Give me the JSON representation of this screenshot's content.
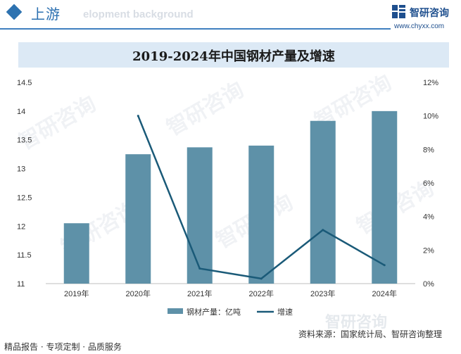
{
  "header": {
    "title": "上游",
    "bg_text": "elopment background"
  },
  "logo": {
    "name": "智研咨询",
    "url": "www.chyxx.com",
    "color": "#1e4f8e"
  },
  "watermark": "智研咨询",
  "footer": {
    "left": "精品报告 · 专项定制 · 品质服务",
    "source": "资料来源：国家统计局、智研咨询整理"
  },
  "chart_data": {
    "type": "bar+line",
    "title": "2019-2024年中国钢材产量及增速",
    "categories": [
      "2019年",
      "2020年",
      "2021年",
      "2022年",
      "2023年",
      "2024年"
    ],
    "series": [
      {
        "name": "钢材产量：亿吨",
        "type": "bar",
        "axis": "left",
        "color": "#5e91a8",
        "values": [
          12.05,
          13.25,
          13.37,
          13.4,
          13.83,
          14.0
        ]
      },
      {
        "name": "增速",
        "type": "line",
        "axis": "right",
        "color": "#1a5a78",
        "values": [
          null,
          10.0,
          0.9,
          0.3,
          3.2,
          1.1
        ]
      }
    ],
    "y_left": {
      "ylim": [
        11,
        14.5
      ],
      "ticks": [
        "11",
        "11.5",
        "12",
        "12.5",
        "13",
        "13.5",
        "14",
        "14.5"
      ]
    },
    "y_right": {
      "ylim": [
        0,
        12
      ],
      "ticks": [
        "0%",
        "2%",
        "4%",
        "6%",
        "8%",
        "10%",
        "12%"
      ]
    },
    "grid": false,
    "legend": "bottom-center"
  }
}
